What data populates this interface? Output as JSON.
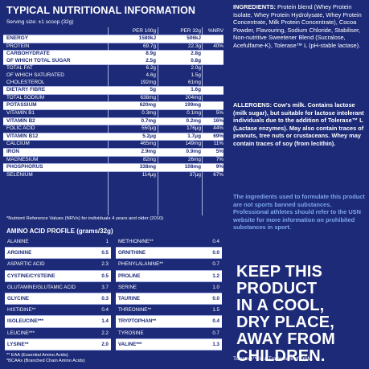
{
  "header": {
    "title": "TYPICAL NUTRITIONAL INFORMATION",
    "serving": "Serving size: ±1 scoop (32g)"
  },
  "table": {
    "columns": [
      "",
      "PER 100g",
      "PER 32g",
      "%NRV"
    ],
    "rows": [
      {
        "name": "ENERGY",
        "per100": "1580kJ",
        "per32": "506kJ",
        "nrv": ""
      },
      {
        "name": "PROTEIN",
        "per100": "69.7g",
        "per32": "22.3g",
        "nrv": "40%"
      },
      {
        "name": "CARBOHYDRATE",
        "per100": "8.9g",
        "per32": "2.8g",
        "nrv": ""
      },
      {
        "name": "OF WHICH TOTAL SUGAR",
        "per100": "2.5g",
        "per32": "0.8g",
        "nrv": ""
      },
      {
        "name": "TOTAL FAT",
        "per100": "6.2g",
        "per32": "2.0g",
        "nrv": ""
      },
      {
        "name": "OF WHICH SATURATED",
        "per100": "4.6g",
        "per32": "1.5g",
        "nrv": ""
      },
      {
        "name": "CHOLESTEROL",
        "per100": "192mg",
        "per32": "61mg",
        "nrv": ""
      },
      {
        "name": "DIETARY FIBRE",
        "per100": "5g",
        "per32": "1.6g",
        "nrv": ""
      },
      {
        "name": "TOTAL SODIUM",
        "per100": "638mg",
        "per32": "204mg",
        "nrv": ""
      },
      {
        "name": "POTASSIUM",
        "per100": "620mg",
        "per32": "199mg",
        "nrv": ""
      },
      {
        "name": "VITAMIN B1",
        "per100": "0.3mg",
        "per32": "0.1mg",
        "nrv": "5%"
      },
      {
        "name": "VITAMIN B2",
        "per100": "0.7mg",
        "per32": "0.2mg",
        "nrv": "16%"
      },
      {
        "name": "FOLIC ACID",
        "per100": "550μg",
        "per32": "176μg",
        "nrv": "44%"
      },
      {
        "name": "VITAMIN B12",
        "per100": "5.2μg",
        "per32": "1.7μg",
        "nrv": "69%"
      },
      {
        "name": "CALCIUM",
        "per100": "465mg",
        "per32": "149mg",
        "nrv": "11%"
      },
      {
        "name": "IRON",
        "per100": "2.9mg",
        "per32": "0.9mg",
        "nrv": "5%"
      },
      {
        "name": "MAGNESIUM",
        "per100": "82mg",
        "per32": "26mg",
        "nrv": "7%"
      },
      {
        "name": "PHOSPHORUS",
        "per100": "338mg",
        "per32": "108mg",
        "nrv": "9%"
      },
      {
        "name": "SELENIUM",
        "per100": "114μg",
        "per32": "37μg",
        "nrv": "67%"
      }
    ],
    "note": "*Nutrient Reference Values (NRVs) for individuals 4 years and older (2010)"
  },
  "amino": {
    "header": "AMINO ACID PROFILE (grams/32g)",
    "left": [
      {
        "name": "ALANINE",
        "value": "1"
      },
      {
        "name": "ARGININE",
        "value": "0.5"
      },
      {
        "name": "ASPARTIC ACID",
        "value": "2.3"
      },
      {
        "name": "CYSTINE/CYSTEINE",
        "value": "0.5"
      },
      {
        "name": "GLUTAMINE/GLUTAMIC ACID",
        "value": "3.7"
      },
      {
        "name": "GLYCINE",
        "value": "0.3"
      },
      {
        "name": "HISTIDINE**",
        "value": "0.4"
      },
      {
        "name": "ISOLEUCINE***",
        "value": "1.4"
      },
      {
        "name": "LEUCINE***",
        "value": "2.2"
      },
      {
        "name": "LYSINE**",
        "value": "2.0"
      }
    ],
    "right": [
      {
        "name": "METHIONINE**",
        "value": "0.4"
      },
      {
        "name": "ORNITHINE",
        "value": "0.0"
      },
      {
        "name": "PHENYLALANINE**",
        "value": "0.7"
      },
      {
        "name": "PROLINE",
        "value": "1.2"
      },
      {
        "name": "SERINE",
        "value": "1.0"
      },
      {
        "name": "TAURINE",
        "value": "0.0"
      },
      {
        "name": "THREONINE**",
        "value": "1.5"
      },
      {
        "name": "TRYPTOPHAN**",
        "value": "0.4"
      },
      {
        "name": "TYROSINE",
        "value": "0.7"
      },
      {
        "name": "VALINE***",
        "value": "1.3"
      }
    ],
    "foot_line1": "** EAA (Essential Amino Acids)",
    "foot_line2": "*BCAAs (Branched Chain Amino Acids)"
  },
  "ingredients": {
    "label": "INGREDIENTS:",
    "text": "Protein blend (Whey Protein Isolate, Whey Protein Hydrolysate, Whey Protein Concentrate, Milk Protein Concentrate), Cocoa Powder, Flavouring, Sodium Chloride, Stabiliser, Non-nutritive Sweetener Blend (Sucralose, Acefulfame-K), Tolerase™ L (pH-stable lactase)."
  },
  "allergens": {
    "label": "ALLERGENS:",
    "text": "Cow's milk. Contains lactose (milk sugar), but suitable for lactose intolerant individuals due to the addition of Tolerase™ L (Lactase enzymes). May also contain traces of peanuts, tree nuts or crustaceans. Whey may contain traces of soy (from lecithin)."
  },
  "sports_notice": "The ingredients used to formulate this product are not sports banned substances. Professional athletes should refer to the USN website for more information on prohibited substances in sport.",
  "storage": [
    "KEEP THIS",
    "PRODUCT",
    "IN A COOL,",
    "DRY PLACE,",
    "AWAY FROM",
    "CHILDREN."
  ],
  "trademark": "Tolerase™ is a Trademark of DSM.",
  "colors": {
    "background": "#1c2a78",
    "row_highlight": "#ffffff",
    "notice_text": "#7fa6ee"
  }
}
